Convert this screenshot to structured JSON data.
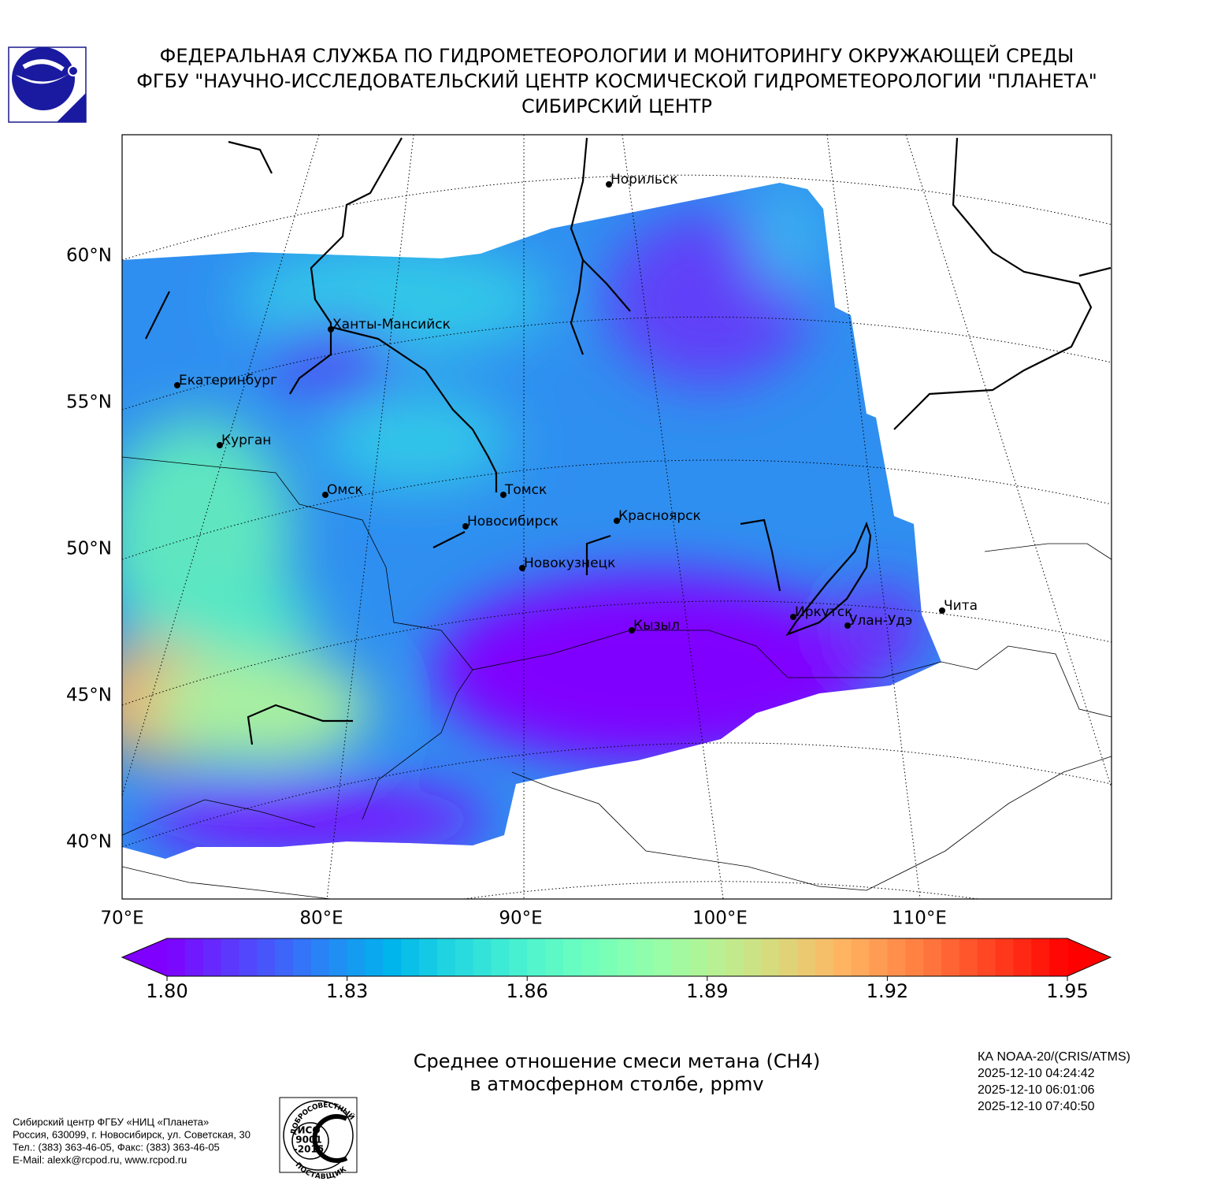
{
  "header": {
    "lines": [
      "ФЕДЕРАЛЬНАЯ СЛУЖБА ПО ГИДРОМЕТЕОРОЛОГИИ И МОНИТОРИНГУ ОКРУЖАЮЩЕЙ СРЕДЫ",
      "ФГБУ \"НАУЧНО-ИССЛЕДОВАТЕЛЬСКИЙ ЦЕНТР КОСМИЧЕСКОЙ ГИДРОМЕТЕОРОЛОГИИ \"ПЛАНЕТА\"",
      "СИБИРСКИЙ ЦЕНТР"
    ]
  },
  "map": {
    "lat_ticks": [
      {
        "value": 60,
        "label": "60°N"
      },
      {
        "value": 55,
        "label": "55°N"
      },
      {
        "value": 50,
        "label": "50°N"
      },
      {
        "value": 45,
        "label": "45°N"
      },
      {
        "value": 40,
        "label": "40°N"
      }
    ],
    "lon_ticks": [
      {
        "value": 70,
        "label": "70°E"
      },
      {
        "value": 80,
        "label": "80°E"
      },
      {
        "value": 90,
        "label": "90°E"
      },
      {
        "value": 100,
        "label": "100°E"
      },
      {
        "value": 110,
        "label": "110°E"
      }
    ],
    "cities": [
      "Норильск",
      "Ханты-Мансийск",
      "Екатеринбург",
      "Курган",
      "Омск",
      "Томск",
      "Новосибирск",
      "Красноярск",
      "Новокузнецк",
      "Иркутск",
      "Улан-Удэ",
      "Чита",
      "Кызыл"
    ]
  },
  "colorbar": {
    "range": [
      1.8,
      1.95
    ],
    "colormap": "rainbow",
    "levels": 50,
    "ticks": [
      {
        "value": 1.8,
        "label": "1.80"
      },
      {
        "value": 1.83,
        "label": "1.83"
      },
      {
        "value": 1.86,
        "label": "1.86"
      },
      {
        "value": 1.89,
        "label": "1.89"
      },
      {
        "value": 1.92,
        "label": "1.92"
      },
      {
        "value": 1.95,
        "label": "1.95"
      }
    ]
  },
  "caption": [
    "Среднее отношение смеси метана (CH4)",
    "в атмосферном столбе, ppmv"
  ],
  "satellite": [
    "КА NOAA-20/(CRIS/ATMS)",
    "2025-12-10 04:24:42",
    "2025-12-10 06:01:06",
    "2025-12-10 07:40:50"
  ],
  "footer": [
    "Сибирский центр ФГБУ «НИЦ «Планета»",
    "Россия, 630099, г. Новосибирск, ул. Советская, 30",
    "Тел.: (383) 363-46-05, Факс: (383) 363-46-05",
    "E-Mail: alexk@rcpod.ru, www.rcpod.ru"
  ],
  "iso": {
    "top": "ДОБРОСОВЕСТНЫЙ",
    "lines": [
      "ИСО",
      "9001",
      "-2015"
    ],
    "bottom": "ПОСТАВЩИК"
  }
}
